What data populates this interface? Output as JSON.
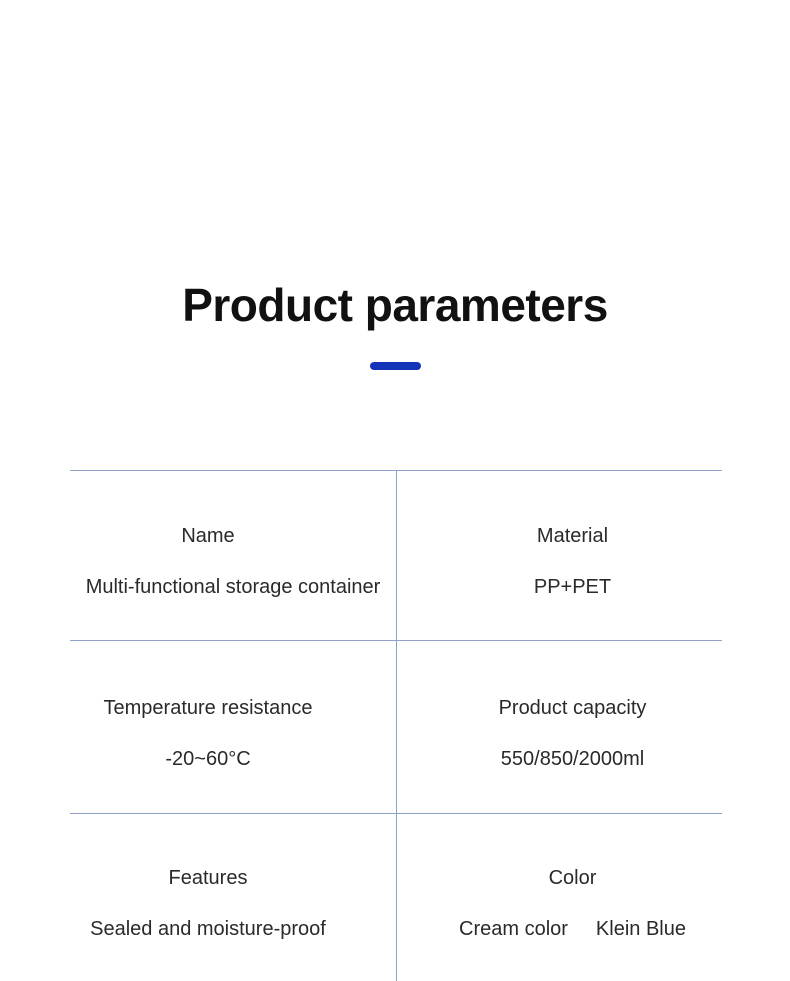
{
  "header": {
    "title": "Product parameters"
  },
  "colors": {
    "accent_bar": "#1333b8",
    "grid_line": "#8fa0ca",
    "title_text": "#111111",
    "cell_text": "#2a2a2a"
  },
  "table": {
    "rows": [
      {
        "left": {
          "label": "Name",
          "value": "Multi-functional storage container"
        },
        "right": {
          "label": "Material",
          "value": "PP+PET"
        }
      },
      {
        "left": {
          "label": "Temperature resistance",
          "value": "-20~60°C"
        },
        "right": {
          "label": "Product capacity",
          "value": "550/850/2000ml"
        }
      },
      {
        "left": {
          "label": "Features",
          "value": "Sealed and moisture-proof"
        },
        "right": {
          "label": "Color",
          "values": [
            "Cream color",
            "Klein Blue"
          ]
        }
      }
    ]
  }
}
